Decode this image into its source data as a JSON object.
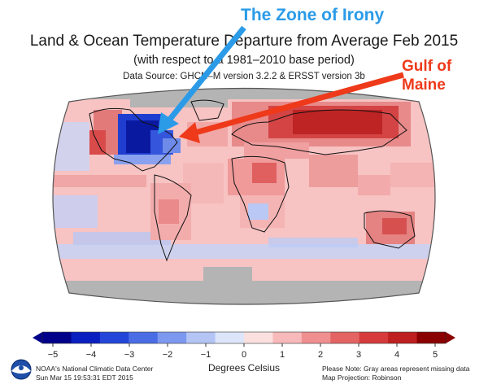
{
  "header": {
    "title": "Land & Ocean Temperature Departure from Average Feb 2015",
    "subtitle": "(with respect to a 1981–2010 base period)",
    "source": "Data Source: GHCN–M version 3.2.2 & ERSST version 3b"
  },
  "annotations": {
    "irony": "The Zone of Irony",
    "irony_color": "#2b9be8",
    "gulf_line1": "Gulf of",
    "gulf_line2": "Maine",
    "gulf_color": "#ee3a1a"
  },
  "legend": {
    "ticks": [
      "−5",
      "−4",
      "−3",
      "−2",
      "−1",
      "0",
      "1",
      "2",
      "3",
      "4",
      "5"
    ],
    "unit": "Degrees Celsius",
    "min": -5,
    "max": 5,
    "colors": [
      "#00008b",
      "#0a1fc0",
      "#2346d8",
      "#4a6de6",
      "#7c98ef",
      "#b3c4f5",
      "#dde5fa",
      "#fbe0e0",
      "#f7b9b9",
      "#f08f8f",
      "#e46464",
      "#d63a3a",
      "#be1f1f",
      "#8b0000"
    ]
  },
  "footer": {
    "org_line1": "NOAA's National Climatic Data Center",
    "org_line2": "Sun Mar 15 19:53:31 EDT 2015",
    "note_line1": "Please Note: Gray areas represent missing data",
    "note_line2": "Map Projection: Robinson",
    "logo_icon": "noaa-logo-icon"
  },
  "map": {
    "projection": "Robinson",
    "missing_color": "#b4b4b4",
    "background_color": "#f7c3c3"
  }
}
